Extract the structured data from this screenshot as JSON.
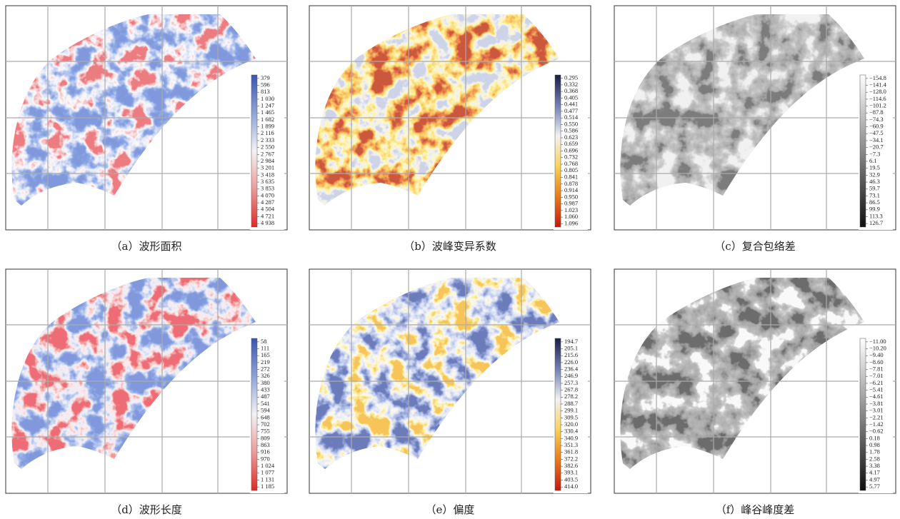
{
  "panels": [
    {
      "caption": "（a）波形面积",
      "colorbar_labels": [
        "379",
        "596",
        "813",
        "1 030",
        "1 247",
        "1 465",
        "1 682",
        "1 899",
        "2 116",
        "2 333",
        "2 550",
        "2 767",
        "2 984",
        "3 201",
        "3 418",
        "3 635",
        "3 853",
        "4 070",
        "4 287",
        "4 504",
        "4 721",
        "4 938"
      ]
    },
    {
      "caption": "（b）波峰变异系数",
      "colorbar_labels": [
        "0.295",
        "0.332",
        "0.368",
        "0.405",
        "0.441",
        "0.477",
        "0.514",
        "0.550",
        "0.586",
        "0.623",
        "0.659",
        "0.696",
        "0.732",
        "0.768",
        "0.805",
        "0.841",
        "0.878",
        "0.914",
        "0.950",
        "0.987",
        "1.023",
        "1.060",
        "1.096"
      ]
    },
    {
      "caption": "（c）复合包络差",
      "colorbar_labels": [
        "−154.8",
        "−141.4",
        "−128.0",
        "−114.6",
        "−101.2",
        "−87.8",
        "−74.3",
        "−60.9",
        "−47.5",
        "−34.1",
        "−20.7",
        "−7.3",
        "6.1",
        "19.5",
        "32.9",
        "46.3",
        "59.7",
        "73.1",
        "86.5",
        "99.9",
        "113.3",
        "126.7"
      ]
    },
    {
      "caption": "（d）波形长度",
      "colorbar_labels": [
        "58",
        "111",
        "165",
        "219",
        "272",
        "326",
        "380",
        "433",
        "487",
        "541",
        "594",
        "648",
        "702",
        "755",
        "809",
        "863",
        "916",
        "970",
        "1 024",
        "1 077",
        "1 131",
        "1 185"
      ]
    },
    {
      "caption": "（e）偏度",
      "colorbar_labels": [
        "194.7",
        "205.1",
        "215.6",
        "226.0",
        "236.4",
        "246.9",
        "257.3",
        "267.8",
        "278.2",
        "288.7",
        "299.1",
        "309.5",
        "320.0",
        "330.4",
        "340.9",
        "351.3",
        "361.8",
        "372.2",
        "382.6",
        "393.1",
        "403.5",
        "414.0"
      ]
    },
    {
      "caption": "（f）峰谷峰度差",
      "colorbar_labels": [
        "−11.00",
        "−10.20",
        "−9.40",
        "−8.60",
        "−7.81",
        "−7.01",
        "−6.21",
        "−5.41",
        "−4.61",
        "−3.81",
        "−3.01",
        "−2.21",
        "−1.42",
        "−0.62",
        "0.18",
        "0.98",
        "1.78",
        "2.58",
        "3.38",
        "4.17",
        "4.97",
        "5.77"
      ]
    }
  ]
}
